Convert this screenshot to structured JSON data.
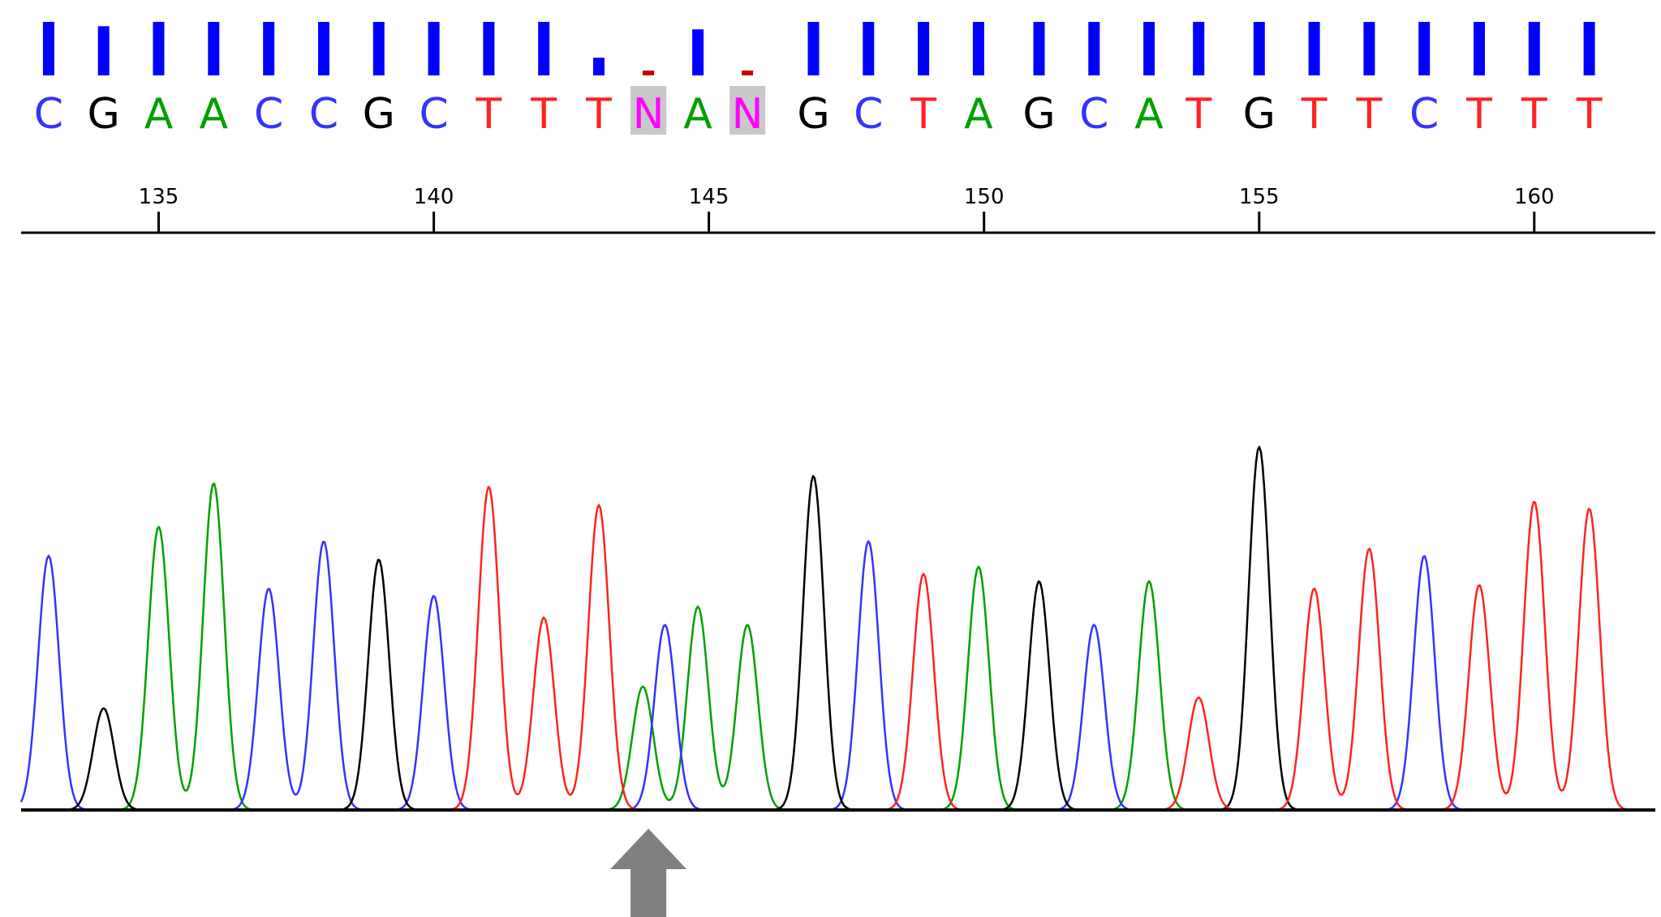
{
  "chart_data": {
    "type": "line",
    "x_axis": {
      "range": [
        132.5,
        162.2
      ],
      "ticks": [
        135,
        140,
        145,
        150,
        155,
        160
      ],
      "tick_labels": [
        "135",
        "140",
        "145",
        "150",
        "155",
        "160"
      ]
    },
    "base_colors": {
      "A": "#00a000",
      "C": "#3333ff",
      "G": "#000000",
      "T": "#ff2222",
      "N": "#ff00ff"
    },
    "ambiguous_highlight_color": "#c8c8c8",
    "quality_bar_color": "#0000ff",
    "low_quality_mark_color": "#cc0000",
    "arrow_color": "#808080",
    "bases": [
      {
        "pos": 133.0,
        "call": "C",
        "quality": 1.0,
        "ambiguous": false
      },
      {
        "pos": 134.0,
        "call": "G",
        "quality": 0.92,
        "ambiguous": false
      },
      {
        "pos": 135.0,
        "call": "A",
        "quality": 1.0,
        "ambiguous": false
      },
      {
        "pos": 136.0,
        "call": "A",
        "quality": 1.0,
        "ambiguous": false
      },
      {
        "pos": 137.0,
        "call": "C",
        "quality": 1.0,
        "ambiguous": false
      },
      {
        "pos": 138.0,
        "call": "C",
        "quality": 1.0,
        "ambiguous": false
      },
      {
        "pos": 139.0,
        "call": "G",
        "quality": 1.0,
        "ambiguous": false
      },
      {
        "pos": 140.0,
        "call": "C",
        "quality": 1.0,
        "ambiguous": false
      },
      {
        "pos": 141.0,
        "call": "T",
        "quality": 1.0,
        "ambiguous": false
      },
      {
        "pos": 142.0,
        "call": "T",
        "quality": 1.0,
        "ambiguous": false
      },
      {
        "pos": 143.0,
        "call": "T",
        "quality": 0.33,
        "ambiguous": false
      },
      {
        "pos": 143.9,
        "call": "N",
        "quality": 0.06,
        "ambiguous": true
      },
      {
        "pos": 144.8,
        "call": "A",
        "quality": 0.86,
        "ambiguous": false
      },
      {
        "pos": 145.7,
        "call": "N",
        "quality": 0.06,
        "ambiguous": true
      },
      {
        "pos": 146.9,
        "call": "G",
        "quality": 1.0,
        "ambiguous": false
      },
      {
        "pos": 147.9,
        "call": "C",
        "quality": 1.0,
        "ambiguous": false
      },
      {
        "pos": 148.9,
        "call": "T",
        "quality": 1.0,
        "ambiguous": false
      },
      {
        "pos": 149.9,
        "call": "A",
        "quality": 1.0,
        "ambiguous": false
      },
      {
        "pos": 151.0,
        "call": "G",
        "quality": 1.0,
        "ambiguous": false
      },
      {
        "pos": 152.0,
        "call": "C",
        "quality": 1.0,
        "ambiguous": false
      },
      {
        "pos": 153.0,
        "call": "A",
        "quality": 1.0,
        "ambiguous": false
      },
      {
        "pos": 153.9,
        "call": "T",
        "quality": 1.0,
        "ambiguous": false
      },
      {
        "pos": 155.0,
        "call": "G",
        "quality": 1.0,
        "ambiguous": false
      },
      {
        "pos": 156.0,
        "call": "T",
        "quality": 1.0,
        "ambiguous": false
      },
      {
        "pos": 157.0,
        "call": "T",
        "quality": 1.0,
        "ambiguous": false
      },
      {
        "pos": 158.0,
        "call": "C",
        "quality": 1.0,
        "ambiguous": false
      },
      {
        "pos": 159.0,
        "call": "T",
        "quality": 1.0,
        "ambiguous": false
      },
      {
        "pos": 160.0,
        "call": "T",
        "quality": 1.0,
        "ambiguous": false
      },
      {
        "pos": 161.0,
        "call": "T",
        "quality": 1.0,
        "ambiguous": false
      }
    ],
    "series": [
      {
        "name": "A",
        "color": "#00a000",
        "peaks": [
          {
            "pos": 135.0,
            "height": 0.78
          },
          {
            "pos": 136.0,
            "height": 0.9
          },
          {
            "pos": 143.8,
            "height": 0.34
          },
          {
            "pos": 144.8,
            "height": 0.56
          },
          {
            "pos": 145.7,
            "height": 0.51
          },
          {
            "pos": 149.9,
            "height": 0.67
          },
          {
            "pos": 153.0,
            "height": 0.63
          }
        ]
      },
      {
        "name": "C",
        "color": "#3333ff",
        "peaks": [
          {
            "pos": 133.0,
            "height": 0.7
          },
          {
            "pos": 137.0,
            "height": 0.61
          },
          {
            "pos": 138.0,
            "height": 0.74
          },
          {
            "pos": 140.0,
            "height": 0.59
          },
          {
            "pos": 144.2,
            "height": 0.51
          },
          {
            "pos": 147.9,
            "height": 0.74
          },
          {
            "pos": 152.0,
            "height": 0.51
          },
          {
            "pos": 158.0,
            "height": 0.7
          }
        ]
      },
      {
        "name": "G",
        "color": "#000000",
        "peaks": [
          {
            "pos": 134.0,
            "height": 0.28
          },
          {
            "pos": 139.0,
            "height": 0.69
          },
          {
            "pos": 146.9,
            "height": 0.92
          },
          {
            "pos": 151.0,
            "height": 0.63
          },
          {
            "pos": 155.0,
            "height": 1.0
          }
        ]
      },
      {
        "name": "T",
        "color": "#ff2222",
        "peaks": [
          {
            "pos": 141.0,
            "height": 0.89
          },
          {
            "pos": 142.0,
            "height": 0.53
          },
          {
            "pos": 143.0,
            "height": 0.84
          },
          {
            "pos": 148.9,
            "height": 0.65
          },
          {
            "pos": 153.9,
            "height": 0.31
          },
          {
            "pos": 156.0,
            "height": 0.61
          },
          {
            "pos": 157.0,
            "height": 0.72
          },
          {
            "pos": 159.0,
            "height": 0.62
          },
          {
            "pos": 160.0,
            "height": 0.85
          },
          {
            "pos": 161.0,
            "height": 0.83
          }
        ]
      }
    ],
    "arrow_at": 143.9
  }
}
